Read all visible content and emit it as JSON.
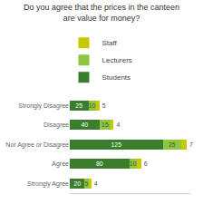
{
  "chart_data": {
    "type": "bar",
    "orientation": "horizontal",
    "stacked": true,
    "title": "Do you agree that the prices in the canteen\nare value for money?",
    "categories": [
      "Strongly Disagree",
      "Disagree",
      "Nor Agree or Disagree",
      "Agree",
      "Strongly Agree"
    ],
    "series": [
      {
        "name": "Students",
        "color": "#3a7d2c",
        "values": [
          25,
          40,
          125,
          80,
          20
        ]
      },
      {
        "name": "Lecturers",
        "color": "#8dc63f",
        "values": [
          10,
          15,
          25,
          10,
          5
        ]
      },
      {
        "name": "Staff",
        "color": "#c8c800",
        "values": [
          5,
          4,
          7,
          6,
          4
        ]
      }
    ],
    "xlim": [
      0,
      162
    ],
    "data_labels": true,
    "tick_labels": "y",
    "legend": "top",
    "grid": false
  }
}
